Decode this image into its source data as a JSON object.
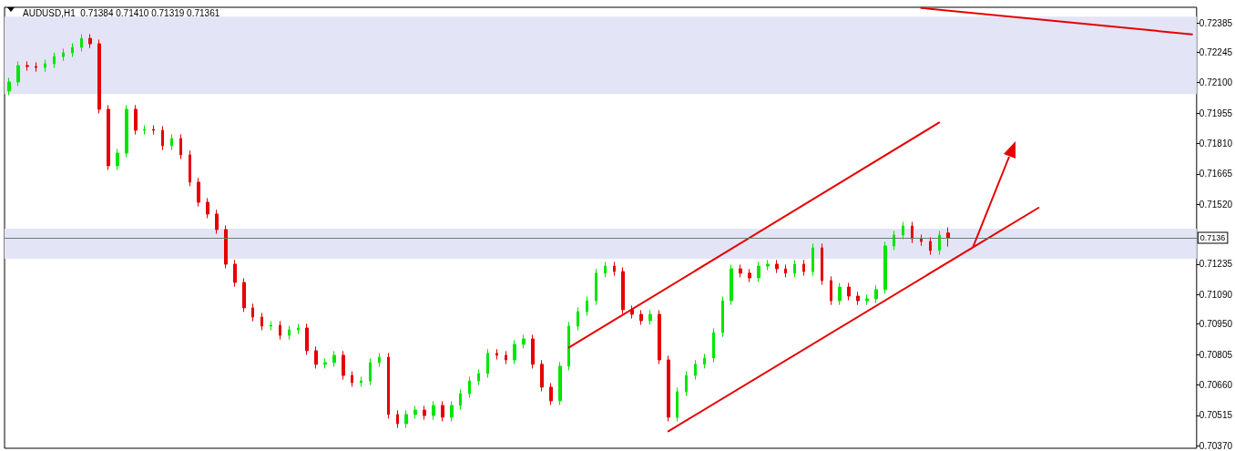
{
  "chart_data": {
    "type": "candlestick",
    "title": "AUDUSD,H1  0.71384 0.71410 0.71319 0.71361",
    "categories": [
      null,
      null,
      null,
      null,
      null,
      null,
      null,
      null,
      null,
      null,
      null,
      null,
      null,
      null,
      null,
      null,
      null,
      null,
      null,
      null,
      null,
      null,
      null,
      null,
      null,
      null,
      null,
      null,
      null,
      null,
      null,
      null,
      null,
      null,
      null,
      null,
      null,
      null,
      null,
      null,
      null,
      null,
      null,
      null,
      null,
      null,
      null,
      null,
      null,
      null,
      null,
      null,
      null,
      null,
      null,
      null,
      null,
      null,
      null,
      null,
      null,
      null,
      null,
      null,
      null,
      null,
      null,
      null,
      null,
      null,
      null,
      null,
      null,
      null,
      null,
      null,
      null,
      null,
      null,
      null,
      null,
      null,
      null,
      null,
      null,
      null,
      null,
      null,
      null,
      null,
      null,
      null,
      null,
      null,
      null,
      null,
      null,
      null,
      null,
      null,
      null,
      null,
      null,
      null,
      null,
      null,
      null,
      null,
      null,
      null,
      null,
      null,
      null,
      null,
      null,
      null,
      null,
      null,
      null,
      null,
      null,
      null,
      null,
      null,
      null,
      null,
      null,
      null,
      null,
      null,
      null,
      null
    ],
    "ohlc": [
      [
        0.7206,
        0.72123,
        0.7204,
        0.72103
      ],
      [
        0.72103,
        0.72201,
        0.72083,
        0.72181
      ],
      [
        0.72181,
        0.72201,
        0.72157,
        0.72177
      ],
      [
        0.72177,
        0.72197,
        0.72152,
        0.72172
      ],
      [
        0.72172,
        0.7221,
        0.72152,
        0.7219
      ],
      [
        0.7219,
        0.72244,
        0.7217,
        0.72224
      ],
      [
        0.72224,
        0.72262,
        0.72204,
        0.72242
      ],
      [
        0.72242,
        0.72288,
        0.72222,
        0.72268
      ],
      [
        0.72268,
        0.72331,
        0.72248,
        0.72311
      ],
      [
        0.72311,
        0.72331,
        0.72265,
        0.72285
      ],
      [
        0.72285,
        0.72305,
        0.71953,
        0.71973
      ],
      [
        0.71973,
        0.71993,
        0.71684,
        0.71704
      ],
      [
        0.71704,
        0.71784,
        0.71684,
        0.71764
      ],
      [
        0.71764,
        0.71993,
        0.71744,
        0.71973
      ],
      [
        0.71973,
        0.71993,
        0.71853,
        0.71873
      ],
      [
        0.71873,
        0.71897,
        0.71853,
        0.71877
      ],
      [
        0.71877,
        0.71897,
        0.71853,
        0.71873
      ],
      [
        0.71873,
        0.71893,
        0.71779,
        0.71799
      ],
      [
        0.71799,
        0.71854,
        0.71779,
        0.71834
      ],
      [
        0.71834,
        0.71854,
        0.71736,
        0.71756
      ],
      [
        0.71756,
        0.71776,
        0.71606,
        0.71626
      ],
      [
        0.71626,
        0.71646,
        0.7151,
        0.7153
      ],
      [
        0.7153,
        0.7155,
        0.71454,
        0.71474
      ],
      [
        0.71474,
        0.71494,
        0.7138,
        0.714
      ],
      [
        0.714,
        0.7142,
        0.71215,
        0.71235
      ],
      [
        0.71235,
        0.71255,
        0.71128,
        0.71148
      ],
      [
        0.71148,
        0.71168,
        0.71007,
        0.71027
      ],
      [
        0.71027,
        0.71047,
        0.70963,
        0.70983
      ],
      [
        0.70983,
        0.71003,
        0.7092,
        0.7094
      ],
      [
        0.7094,
        0.70964,
        0.7092,
        0.70944
      ],
      [
        0.70944,
        0.70964,
        0.70876,
        0.70896
      ],
      [
        0.70896,
        0.70942,
        0.70876,
        0.70922
      ],
      [
        0.70922,
        0.70951,
        0.70902,
        0.70931
      ],
      [
        0.70931,
        0.70951,
        0.70803,
        0.70823
      ],
      [
        0.70823,
        0.70843,
        0.70738,
        0.70758
      ],
      [
        0.70758,
        0.70786,
        0.70738,
        0.70766
      ],
      [
        0.70766,
        0.70821,
        0.70746,
        0.70801
      ],
      [
        0.70801,
        0.70821,
        0.70685,
        0.70705
      ],
      [
        0.70705,
        0.70725,
        0.70651,
        0.70671
      ],
      [
        0.70671,
        0.70699,
        0.70651,
        0.70679
      ],
      [
        0.70679,
        0.70786,
        0.70659,
        0.70766
      ],
      [
        0.70766,
        0.70812,
        0.70746,
        0.70792
      ],
      [
        0.70792,
        0.70812,
        0.70499,
        0.70519
      ],
      [
        0.70519,
        0.70539,
        0.70455,
        0.70475
      ],
      [
        0.70475,
        0.70539,
        0.70455,
        0.70519
      ],
      [
        0.70519,
        0.7056,
        0.70499,
        0.7054
      ],
      [
        0.7054,
        0.7056,
        0.70494,
        0.70514
      ],
      [
        0.70514,
        0.70582,
        0.70494,
        0.70562
      ],
      [
        0.70562,
        0.70582,
        0.70486,
        0.70506
      ],
      [
        0.70506,
        0.70582,
        0.70486,
        0.70562
      ],
      [
        0.70562,
        0.70638,
        0.70542,
        0.70618
      ],
      [
        0.70618,
        0.70699,
        0.70598,
        0.70679
      ],
      [
        0.70679,
        0.70734,
        0.70659,
        0.70714
      ],
      [
        0.70714,
        0.7083,
        0.70694,
        0.7081
      ],
      [
        0.7081,
        0.7083,
        0.70781,
        0.70801
      ],
      [
        0.70801,
        0.70821,
        0.70759,
        0.70779
      ],
      [
        0.70779,
        0.70873,
        0.70759,
        0.70853
      ],
      [
        0.70853,
        0.70899,
        0.70833,
        0.70879
      ],
      [
        0.70879,
        0.70899,
        0.70738,
        0.70758
      ],
      [
        0.70758,
        0.70778,
        0.70629,
        0.70649
      ],
      [
        0.70649,
        0.70669,
        0.70564,
        0.70584
      ],
      [
        0.70584,
        0.70769,
        0.70564,
        0.70749
      ],
      [
        0.70749,
        0.7096,
        0.70729,
        0.7094
      ],
      [
        0.7094,
        0.71029,
        0.7092,
        0.71009
      ],
      [
        0.71009,
        0.71081,
        0.70989,
        0.71061
      ],
      [
        0.71061,
        0.71212,
        0.71041,
        0.71192
      ],
      [
        0.71192,
        0.71246,
        0.71172,
        0.71226
      ],
      [
        0.71226,
        0.71246,
        0.7118,
        0.712
      ],
      [
        0.712,
        0.7122,
        0.70998,
        0.71018
      ],
      [
        0.71018,
        0.71038,
        0.70976,
        0.70996
      ],
      [
        0.70996,
        0.71016,
        0.70946,
        0.70966
      ],
      [
        0.70966,
        0.71016,
        0.70946,
        0.70996
      ],
      [
        0.70996,
        0.71016,
        0.70759,
        0.70779
      ],
      [
        0.70779,
        0.70799,
        0.70486,
        0.70506
      ],
      [
        0.70506,
        0.70647,
        0.70486,
        0.70627
      ],
      [
        0.70627,
        0.70725,
        0.70607,
        0.70705
      ],
      [
        0.70705,
        0.70778,
        0.70685,
        0.70758
      ],
      [
        0.70758,
        0.70808,
        0.70738,
        0.70788
      ],
      [
        0.70788,
        0.70929,
        0.70768,
        0.70909
      ],
      [
        0.70909,
        0.71081,
        0.70889,
        0.71061
      ],
      [
        0.71061,
        0.71233,
        0.71041,
        0.71213
      ],
      [
        0.71213,
        0.71233,
        0.71172,
        0.71192
      ],
      [
        0.71192,
        0.71212,
        0.7115,
        0.7117
      ],
      [
        0.7117,
        0.71246,
        0.7115,
        0.71226
      ],
      [
        0.71226,
        0.71255,
        0.71206,
        0.71235
      ],
      [
        0.71235,
        0.71255,
        0.71193,
        0.71213
      ],
      [
        0.71213,
        0.71233,
        0.71172,
        0.71192
      ],
      [
        0.71192,
        0.71255,
        0.71172,
        0.71235
      ],
      [
        0.71235,
        0.71255,
        0.7118,
        0.712
      ],
      [
        0.712,
        0.71333,
        0.7118,
        0.71313
      ],
      [
        0.71313,
        0.71333,
        0.71137,
        0.71157
      ],
      [
        0.71157,
        0.71177,
        0.71041,
        0.71061
      ],
      [
        0.71061,
        0.71146,
        0.71041,
        0.71126
      ],
      [
        0.71126,
        0.71146,
        0.71063,
        0.71083
      ],
      [
        0.71083,
        0.71103,
        0.71041,
        0.71061
      ],
      [
        0.71061,
        0.7109,
        0.71041,
        0.7107
      ],
      [
        0.7107,
        0.71134,
        0.7105,
        0.71114
      ],
      [
        0.71114,
        0.71342,
        0.71094,
        0.71322
      ],
      [
        0.71322,
        0.71394,
        0.71302,
        0.71374
      ],
      [
        0.71374,
        0.71437,
        0.71354,
        0.71417
      ],
      [
        0.71417,
        0.71437,
        0.71336,
        0.71356
      ],
      [
        0.71356,
        0.71376,
        0.71323,
        0.71343
      ],
      [
        0.71343,
        0.71363,
        0.7128,
        0.713
      ],
      [
        0.713,
        0.71394,
        0.7128,
        0.71374
      ],
      [
        0.71384,
        0.7141,
        0.71319,
        0.71361
      ],
      null,
      null,
      null,
      null,
      null,
      null,
      null,
      null,
      null,
      null,
      null,
      null,
      null,
      null,
      null,
      null,
      null,
      null,
      null,
      null,
      null,
      null,
      null,
      null,
      null,
      null,
      null
    ],
    "series": [
      {
        "type": "line",
        "color": "#e60000",
        "values": [
          null,
          null,
          null,
          null,
          null,
          null,
          null,
          null,
          null,
          null,
          null,
          null,
          null,
          null,
          null,
          null,
          null,
          null,
          null,
          null,
          null,
          null,
          null,
          null,
          null,
          null,
          null,
          null,
          null,
          null,
          null,
          null,
          null,
          null,
          null,
          null,
          null,
          null,
          null,
          null,
          null,
          null,
          null,
          null,
          null,
          null,
          null,
          null,
          null,
          null,
          null,
          null,
          null,
          null,
          null,
          null,
          null,
          null,
          null,
          null,
          null,
          null,
          0.70838,
          null,
          null,
          null,
          null,
          null,
          null,
          null,
          null,
          null,
          null,
          null,
          null,
          null,
          null,
          null,
          null,
          null,
          null,
          null,
          null,
          null,
          null,
          null,
          null,
          null,
          null,
          null,
          null,
          null,
          null,
          null,
          null,
          null,
          null,
          null,
          null,
          null,
          null,
          null,
          null,
          0.7191,
          null,
          null,
          null,
          null,
          null,
          null,
          null,
          null,
          null,
          null,
          null,
          null,
          null,
          null,
          null,
          null,
          null,
          null,
          null,
          null,
          null,
          null,
          null,
          null,
          null,
          null,
          null,
          null
        ]
      },
      {
        "type": "line",
        "color": "#e60000",
        "values": [
          null,
          null,
          null,
          null,
          null,
          null,
          null,
          null,
          null,
          null,
          null,
          null,
          null,
          null,
          null,
          null,
          null,
          null,
          null,
          null,
          null,
          null,
          null,
          null,
          null,
          null,
          null,
          null,
          null,
          null,
          null,
          null,
          null,
          null,
          null,
          null,
          null,
          null,
          null,
          null,
          null,
          null,
          null,
          null,
          null,
          null,
          null,
          null,
          null,
          null,
          null,
          null,
          null,
          null,
          null,
          null,
          null,
          null,
          null,
          null,
          null,
          null,
          null,
          null,
          null,
          null,
          null,
          null,
          null,
          null,
          null,
          null,
          null,
          0.70439,
          null,
          null,
          null,
          null,
          null,
          null,
          null,
          null,
          null,
          null,
          null,
          null,
          null,
          null,
          null,
          null,
          null,
          null,
          null,
          null,
          null,
          null,
          null,
          null,
          null,
          null,
          null,
          null,
          null,
          null,
          null,
          null,
          null,
          null,
          null,
          null,
          null,
          null,
          null,
          null,
          0.71504,
          null,
          null,
          null,
          null,
          null,
          null,
          null,
          null,
          null,
          null,
          null,
          null,
          null,
          null,
          null,
          null,
          null
        ]
      },
      {
        "type": "line",
        "color": "#e60000",
        "values": [
          null,
          null,
          null,
          null,
          null,
          null,
          null,
          null,
          null,
          null,
          null,
          null,
          null,
          null,
          null,
          null,
          null,
          null,
          null,
          null,
          null,
          null,
          null,
          null,
          null,
          null,
          null,
          null,
          null,
          null,
          null,
          null,
          null,
          null,
          null,
          null,
          null,
          null,
          null,
          null,
          null,
          null,
          null,
          null,
          null,
          null,
          null,
          null,
          null,
          null,
          null,
          null,
          null,
          null,
          null,
          null,
          null,
          null,
          null,
          null,
          null,
          null,
          null,
          null,
          null,
          null,
          null,
          null,
          null,
          null,
          null,
          null,
          null,
          null,
          null,
          null,
          null,
          null,
          null,
          null,
          null,
          null,
          null,
          null,
          null,
          null,
          null,
          null,
          null,
          null,
          null,
          null,
          null,
          null,
          null,
          null,
          null,
          null,
          null,
          null,
          null,
          0.72456,
          null,
          null,
          null,
          null,
          null,
          null,
          null,
          null,
          null,
          null,
          null,
          null,
          null,
          null,
          null,
          null,
          null,
          null,
          null,
          null,
          null,
          null,
          null,
          null,
          null,
          null,
          null,
          null,
          null,
          0.7233
        ]
      }
    ],
    "ylim": [
      0.70358,
      0.72459
    ],
    "yticks": [
      {
        "value": 0.72385,
        "label": "0.72385"
      },
      {
        "value": 0.72245,
        "label": "0.72245"
      },
      {
        "value": 0.721,
        "label": "0.72100"
      },
      {
        "value": 0.71955,
        "label": "0.71955"
      },
      {
        "value": 0.7181,
        "label": "0.71810"
      },
      {
        "value": 0.71665,
        "label": "0.71665"
      },
      {
        "value": 0.7152,
        "label": "0.71520"
      },
      {
        "value": 0.71235,
        "label": "0.71235"
      },
      {
        "value": 0.7109,
        "label": "0.71090"
      },
      {
        "value": 0.7095,
        "label": "0.70950"
      },
      {
        "value": 0.70805,
        "label": "0.70805"
      },
      {
        "value": 0.7066,
        "label": "0.70660"
      },
      {
        "value": 0.70515,
        "label": "0.70515"
      },
      {
        "value": 0.7037,
        "label": "0.70370"
      }
    ],
    "tick_labels": "y",
    "bands": [
      {
        "axis": "y",
        "from": 0.72046,
        "to": 0.72415,
        "color": "#e3e5f7"
      },
      {
        "axis": "y",
        "from": 0.71261,
        "to": 0.71404,
        "color": "#e3e5f7"
      }
    ],
    "ref_lines": [
      {
        "axis": "y",
        "value": 0.71361,
        "label": "0.7136",
        "color": "#6b7f6b"
      }
    ],
    "marker": "none",
    "grid": false
  }
}
